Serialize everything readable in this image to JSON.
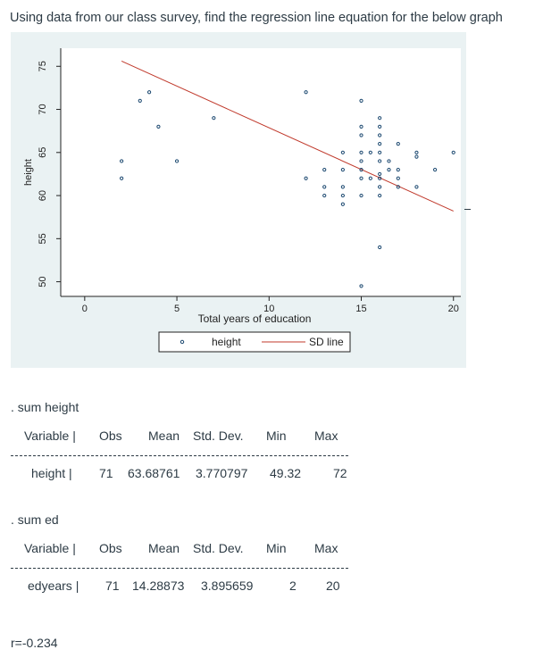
{
  "question": "Using data from our class survey, find the regression line equation for the below graph",
  "chart_data": {
    "type": "scatter",
    "xlabel": "Total years of education",
    "ylabel": "height",
    "xlim": [
      -1.3,
      20.4
    ],
    "ylim": [
      48.3,
      77.1
    ],
    "xticks": [
      "0",
      "5",
      "10",
      "15",
      "20"
    ],
    "xtick_values": [
      0,
      5,
      10,
      15,
      20
    ],
    "yticks": [
      "50",
      "55",
      "60",
      "65",
      "70",
      "75"
    ],
    "ytick_values": [
      50,
      55,
      60,
      65,
      70,
      75
    ],
    "grid": false,
    "legend": [
      "height",
      "SD line"
    ],
    "legend_position": "bottom",
    "colors": {
      "points": "#1a476f",
      "sd_line": "#c0392b",
      "panel": "#eaf2f3"
    },
    "sd_line": {
      "x": [
        2,
        20
      ],
      "y": [
        75.6,
        58.2
      ]
    },
    "points": [
      [
        2,
        64
      ],
      [
        2,
        62
      ],
      [
        3,
        71
      ],
      [
        3.5,
        72
      ],
      [
        4,
        68
      ],
      [
        5,
        64
      ],
      [
        7,
        69
      ],
      [
        12,
        72
      ],
      [
        12,
        62
      ],
      [
        13,
        63
      ],
      [
        13,
        61
      ],
      [
        13,
        60
      ],
      [
        14,
        65
      ],
      [
        14,
        63
      ],
      [
        14,
        61
      ],
      [
        14,
        60
      ],
      [
        14,
        59
      ],
      [
        15,
        71
      ],
      [
        15,
        68
      ],
      [
        15,
        67
      ],
      [
        15,
        65
      ],
      [
        15,
        64
      ],
      [
        15,
        63
      ],
      [
        15,
        62
      ],
      [
        15,
        60
      ],
      [
        15,
        49.5
      ],
      [
        15.5,
        65
      ],
      [
        15.5,
        62
      ],
      [
        16,
        69
      ],
      [
        16,
        68
      ],
      [
        16,
        67
      ],
      [
        16,
        66
      ],
      [
        16,
        65
      ],
      [
        16,
        64
      ],
      [
        16,
        62.5
      ],
      [
        16,
        62
      ],
      [
        16,
        61
      ],
      [
        16,
        60
      ],
      [
        16,
        54
      ],
      [
        16.5,
        64
      ],
      [
        16.5,
        63
      ],
      [
        17,
        66
      ],
      [
        17,
        63
      ],
      [
        17,
        62
      ],
      [
        17,
        61
      ],
      [
        18,
        65
      ],
      [
        18,
        64.5
      ],
      [
        18,
        61
      ],
      [
        19,
        63
      ],
      [
        20,
        65
      ]
    ]
  },
  "sum_height": {
    "command": ". sum height",
    "headers": [
      "Variable |",
      "Obs",
      "Mean",
      "Std. Dev.",
      "Min",
      "Max"
    ],
    "row": [
      "height |",
      "71",
      "63.68761",
      "3.770797",
      "49.32",
      "72"
    ]
  },
  "sum_ed": {
    "command": ". sum ed",
    "headers": [
      "Variable |",
      "Obs",
      "Mean",
      "Std. Dev.",
      "Min",
      "Max"
    ],
    "row": [
      "edyears |",
      "71",
      "14.28873",
      "3.895659",
      "2",
      "20"
    ]
  },
  "correlation": "r=-0.234"
}
